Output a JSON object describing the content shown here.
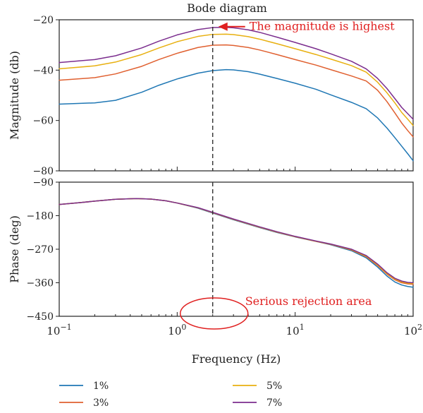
{
  "chart_data": [
    {
      "type": "line",
      "title": "Bode diagram",
      "xlabel": "",
      "ylabel": "Magnitude (db)",
      "x_scale": "log",
      "xlim": [
        0.1,
        100
      ],
      "ylim": [
        -80,
        -20
      ],
      "y_ticks": [
        -20,
        -40,
        -60,
        -80
      ],
      "y_tick_labels": [
        "−20",
        "−40",
        "−60",
        "−80"
      ],
      "x": [
        0.1,
        0.2,
        0.3,
        0.5,
        0.7,
        1,
        1.5,
        2,
        2.6,
        3,
        4,
        5,
        7,
        10,
        15,
        20,
        30,
        40,
        50,
        60,
        70,
        80,
        90,
        100
      ],
      "series": [
        {
          "name": "1%",
          "color": "#1f77b4",
          "values": [
            -53.5,
            -53.0,
            -52.0,
            -48.8,
            -46.0,
            -43.5,
            -41.2,
            -40.2,
            -39.8,
            -39.9,
            -40.6,
            -41.6,
            -43.3,
            -45.2,
            -47.6,
            -49.8,
            -52.8,
            -55.3,
            -59.0,
            -63.0,
            -66.8,
            -70.2,
            -73.2,
            -76.0
          ]
        },
        {
          "name": "3%",
          "color": "#e06030",
          "values": [
            -44.0,
            -43.0,
            -41.5,
            -38.5,
            -35.8,
            -33.3,
            -31.0,
            -30.1,
            -30.0,
            -30.2,
            -31.0,
            -32.0,
            -33.8,
            -35.8,
            -38.0,
            -39.8,
            -42.3,
            -44.3,
            -48.0,
            -52.5,
            -57.0,
            -61.0,
            -64.0,
            -66.5
          ]
        },
        {
          "name": "5%",
          "color": "#e8b010",
          "values": [
            -39.5,
            -38.3,
            -36.8,
            -33.8,
            -31.2,
            -28.7,
            -26.6,
            -25.8,
            -25.7,
            -25.9,
            -26.7,
            -27.7,
            -29.5,
            -31.5,
            -33.8,
            -35.6,
            -38.2,
            -40.8,
            -44.8,
            -49.0,
            -53.0,
            -56.8,
            -59.5,
            -62.0
          ]
        },
        {
          "name": "7%",
          "color": "#7b2d8e",
          "values": [
            -37.0,
            -35.8,
            -34.3,
            -31.2,
            -28.5,
            -26.0,
            -23.9,
            -23.1,
            -23.0,
            -23.2,
            -24.0,
            -25.0,
            -26.9,
            -29.0,
            -31.5,
            -33.5,
            -36.5,
            -39.5,
            -43.3,
            -47.3,
            -51.3,
            -54.8,
            -57.3,
            -59.5
          ]
        }
      ],
      "annotations": [
        {
          "text": "The magnitude is highest",
          "color": "#e02020",
          "arrow_x": 2,
          "arrow_y": -23
        }
      ],
      "vline_x": 2,
      "grid": false
    },
    {
      "type": "line",
      "title": "",
      "xlabel": "Frequency (Hz)",
      "ylabel": "Phase (deg)",
      "x_scale": "log",
      "xlim": [
        0.1,
        100
      ],
      "ylim": [
        -450,
        -90
      ],
      "y_ticks": [
        -90,
        -180,
        -270,
        -360,
        -450
      ],
      "y_tick_labels": [
        "−90",
        "−180",
        "−270",
        "−360",
        "−450"
      ],
      "x_ticks": [
        0.1,
        1,
        10,
        100
      ],
      "x_tick_labels": [
        {
          "base": "10",
          "exp": "−1"
        },
        {
          "base": "10",
          "exp": "0"
        },
        {
          "base": "10",
          "exp": "1"
        },
        {
          "base": "10",
          "exp": "2"
        }
      ],
      "x": [
        0.1,
        0.15,
        0.2,
        0.3,
        0.45,
        0.6,
        0.8,
        1,
        1.5,
        2,
        3,
        5,
        7,
        10,
        15,
        20,
        30,
        40,
        50,
        60,
        70,
        80,
        90,
        100
      ],
      "series": [
        {
          "name": "1%",
          "color": "#1f77b4",
          "values": [
            -150.0,
            -145.0,
            -141.0,
            -136.0,
            -134.0,
            -135.5,
            -140.0,
            -146.0,
            -160.0,
            -173.0,
            -191.0,
            -212.0,
            -225.0,
            -237.0,
            -249.0,
            -258.0,
            -274.0,
            -293.0,
            -318.0,
            -342.0,
            -358.0,
            -366.0,
            -370.0,
            -372.0
          ]
        },
        {
          "name": "3%",
          "color": "#e06030",
          "values": [
            -150.0,
            -145.0,
            -141.0,
            -136.0,
            -134.0,
            -135.5,
            -140.0,
            -146.0,
            -159.0,
            -172.0,
            -190.0,
            -211.0,
            -224.0,
            -236.5,
            -249.0,
            -257.0,
            -272.0,
            -290.0,
            -314.0,
            -337.0,
            -352.0,
            -360.0,
            -363.0,
            -364.0
          ]
        },
        {
          "name": "5%",
          "color": "#e8b010",
          "values": [
            -150.0,
            -145.0,
            -141.0,
            -136.0,
            -134.0,
            -135.5,
            -140.0,
            -146.0,
            -159.0,
            -171.5,
            -189.5,
            -210.5,
            -223.5,
            -236.0,
            -248.5,
            -256.5,
            -271.0,
            -288.5,
            -312.0,
            -335.0,
            -350.0,
            -357.5,
            -361.0,
            -362.0
          ]
        },
        {
          "name": "7%",
          "color": "#7b2d8e",
          "values": [
            -150.0,
            -145.0,
            -141.0,
            -136.0,
            -134.0,
            -135.5,
            -140.0,
            -146.0,
            -158.5,
            -171.0,
            -189.0,
            -210.0,
            -223.0,
            -235.5,
            -248.0,
            -256.0,
            -270.0,
            -287.0,
            -310.0,
            -333.0,
            -348.0,
            -355.5,
            -359.0,
            -360.0
          ]
        }
      ],
      "annotations": [
        {
          "text": "Serious rejection area",
          "color": "#e02020",
          "ellipse_center_x": 2,
          "ellipse_center_y": -450
        }
      ],
      "vline_x": 2,
      "grid": false
    }
  ],
  "legend": {
    "placement": "bottom",
    "items": [
      {
        "label": "1%",
        "color": "#1f77b4"
      },
      {
        "label": "5%",
        "color": "#e8b010"
      },
      {
        "label": "3%",
        "color": "#e06030"
      },
      {
        "label": "7%",
        "color": "#7b2d8e"
      }
    ]
  }
}
